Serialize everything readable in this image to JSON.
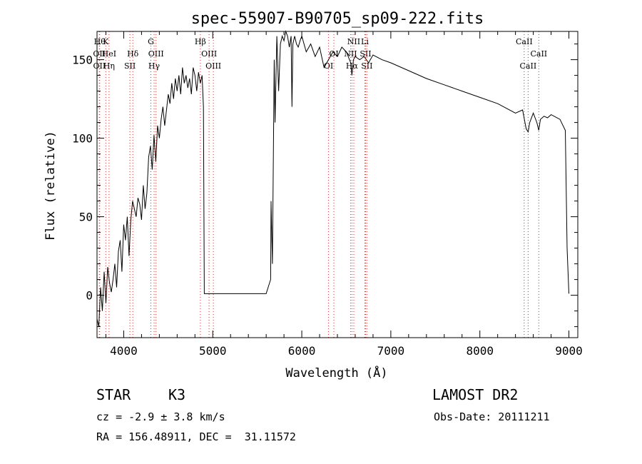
{
  "chart_data": {
    "type": "line",
    "title": "spec-55907-B90705_sp09-222.fits",
    "xlabel": "Wavelength (Å)",
    "ylabel": "Flux (relative)",
    "xlim": [
      3700,
      9100
    ],
    "ylim": [
      -27,
      168
    ],
    "x_ticks": [
      4000,
      5000,
      6000,
      7000,
      8000,
      9000
    ],
    "y_ticks": [
      0,
      50,
      100,
      150
    ],
    "series": [
      {
        "x": [
          3700,
          3720,
          3740,
          3760,
          3780,
          3800,
          3820,
          3840,
          3860,
          3880,
          3900,
          3920,
          3940,
          3960,
          3980,
          4000,
          4020,
          4040,
          4060,
          4080,
          4100,
          4120,
          4140,
          4160,
          4180,
          4200,
          4220,
          4240,
          4260,
          4280,
          4300,
          4320,
          4340,
          4360,
          4380,
          4400,
          4420,
          4440,
          4460,
          4480,
          4500,
          4520,
          4540,
          4560,
          4580,
          4600,
          4620,
          4640,
          4660,
          4680,
          4700,
          4720,
          4740,
          4760,
          4780,
          4800,
          4820,
          4840,
          4860,
          4880,
          4895,
          4905,
          5000,
          5200,
          5400,
          5600,
          5650,
          5655,
          5670,
          5690,
          5700,
          5720,
          5740,
          5760,
          5780,
          5800,
          5820,
          5840,
          5860,
          5880,
          5890,
          5900,
          5920,
          5940,
          5960,
          5980,
          6000,
          6050,
          6100,
          6150,
          6200,
          6250,
          6300,
          6350,
          6400,
          6450,
          6500,
          6550,
          6563,
          6580,
          6600,
          6650,
          6700,
          6750,
          6800,
          6900,
          7000,
          7200,
          7400,
          7600,
          7800,
          8000,
          8200,
          8400,
          8480,
          8500,
          8520,
          8542,
          8560,
          8600,
          8640,
          8662,
          8680,
          8720,
          8760,
          8800,
          8900,
          8960,
          8980,
          9000
        ],
        "y": [
          -15,
          -20,
          5,
          -10,
          15,
          -5,
          18,
          8,
          2,
          10,
          20,
          5,
          28,
          35,
          15,
          45,
          35,
          50,
          25,
          48,
          60,
          55,
          50,
          62,
          58,
          48,
          70,
          55,
          65,
          88,
          95,
          80,
          102,
          85,
          108,
          100,
          112,
          120,
          108,
          118,
          128,
          122,
          135,
          125,
          138,
          130,
          140,
          128,
          145,
          135,
          140,
          132,
          138,
          128,
          145,
          140,
          130,
          142,
          135,
          140,
          120,
          1,
          1,
          1,
          1,
          1,
          10,
          60,
          20,
          150,
          110,
          165,
          130,
          160,
          165,
          162,
          168,
          165,
          158,
          165,
          120,
          160,
          165,
          160,
          158,
          162,
          165,
          155,
          160,
          152,
          158,
          145,
          150,
          155,
          152,
          158,
          155,
          148,
          140,
          150,
          152,
          150,
          152,
          148,
          153,
          150,
          148,
          143,
          138,
          134,
          130,
          126,
          122,
          116,
          118,
          112,
          106,
          104,
          110,
          116,
          110,
          105,
          112,
          114,
          113,
          115,
          112,
          105,
          30,
          1
        ]
      }
    ],
    "line_labels": [
      {
        "x": 3730,
        "text": "Hθ",
        "row": 1,
        "color": "red"
      },
      {
        "x": 3798,
        "text": "K",
        "row": 1,
        "color": "red"
      },
      {
        "x": 4102,
        "text": "Hδ",
        "row": 2,
        "color": "red"
      },
      {
        "x": 4305,
        "text": "G",
        "row": 1,
        "color": "black"
      },
      {
        "x": 4861,
        "text": "Hβ",
        "row": 1,
        "color": "red"
      },
      {
        "x": 6584,
        "text": "NII",
        "row": 1,
        "color": "red"
      },
      {
        "x": 6708,
        "text": "Li",
        "row": 1,
        "color": "black"
      },
      {
        "x": 8498,
        "text": "CaII",
        "row": 1,
        "color": "black"
      },
      {
        "x": 3726,
        "text": "OII",
        "row": 2,
        "color": "red"
      },
      {
        "x": 3835,
        "text": "HeI",
        "row": 2,
        "color": "red"
      },
      {
        "x": 4363,
        "text": "OIII",
        "row": 2,
        "color": "red"
      },
      {
        "x": 4959,
        "text": "OIII",
        "row": 2,
        "color": "red"
      },
      {
        "x": 6360,
        "text": "OI",
        "row": 2,
        "color": "red"
      },
      {
        "x": 6548,
        "text": "NII",
        "row": 2,
        "color": "red"
      },
      {
        "x": 6716,
        "text": "SII",
        "row": 2,
        "color": "red"
      },
      {
        "x": 8662,
        "text": "CaII",
        "row": 2,
        "color": "black"
      },
      {
        "x": 3727,
        "text": "OII",
        "row": 3,
        "color": "red"
      },
      {
        "x": 3835,
        "text": "Hη",
        "row": 3,
        "color": "red"
      },
      {
        "x": 4069,
        "text": "SII",
        "row": 3,
        "color": "red"
      },
      {
        "x": 4341,
        "text": "Hγ",
        "row": 3,
        "color": "red"
      },
      {
        "x": 5007,
        "text": "OIII",
        "row": 3,
        "color": "red"
      },
      {
        "x": 6300,
        "text": "OI",
        "row": 3,
        "color": "red"
      },
      {
        "x": 6563,
        "text": "Hα",
        "row": 3,
        "color": "red"
      },
      {
        "x": 6731,
        "text": "SII",
        "row": 3,
        "color": "red"
      },
      {
        "x": 8542,
        "text": "CaII",
        "row": 3,
        "color": "black"
      }
    ],
    "legend": "none",
    "grid": false
  },
  "info": {
    "object_type": "STAR",
    "subclass": "K3",
    "survey": "LAMOST DR2",
    "cz": "cz = -2.9 ± 3.8 km/s",
    "obs_date": "Obs-Date: 20111211",
    "radec": "RA = 156.48911, DEC =  31.11572"
  },
  "colors": {
    "line": "#000000",
    "emission_marker": "#cc3333",
    "absorption_marker": "#555555"
  }
}
